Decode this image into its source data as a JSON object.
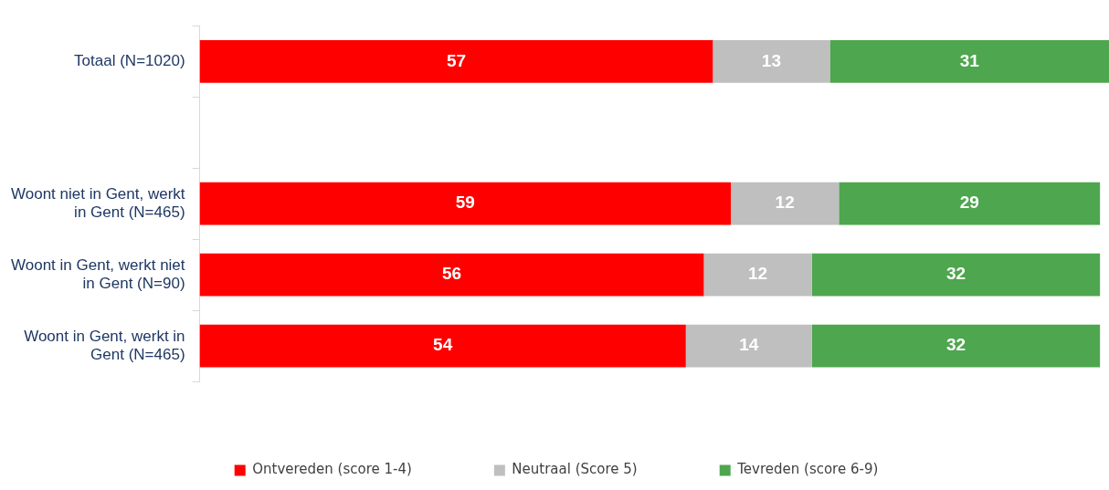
{
  "chart_data": {
    "type": "bar",
    "orientation": "horizontal",
    "stacked": true,
    "data_labels": true,
    "legend": "bottom",
    "tick_labels": "y",
    "grid": false,
    "categories": [
      "Totaal (N=1020)",
      null,
      "Woont niet in Gent, werkt in Gent (N=465)",
      "Woont in Gent, werkt niet in Gent (N=90)",
      "Woont in Gent, werkt in Gent (N=465)"
    ],
    "series": [
      {
        "name": "Ontvereden (score 1-4)",
        "color": "#ff0000",
        "values": [
          57,
          null,
          59,
          56,
          54
        ]
      },
      {
        "name": "Neutraal (Score 5)",
        "color": "#bfbfbf",
        "values": [
          13,
          null,
          12,
          12,
          14
        ]
      },
      {
        "name": "Tevreden (score 6-9)",
        "color": "#4ea64e",
        "values": [
          31,
          null,
          29,
          32,
          32
        ]
      }
    ]
  }
}
